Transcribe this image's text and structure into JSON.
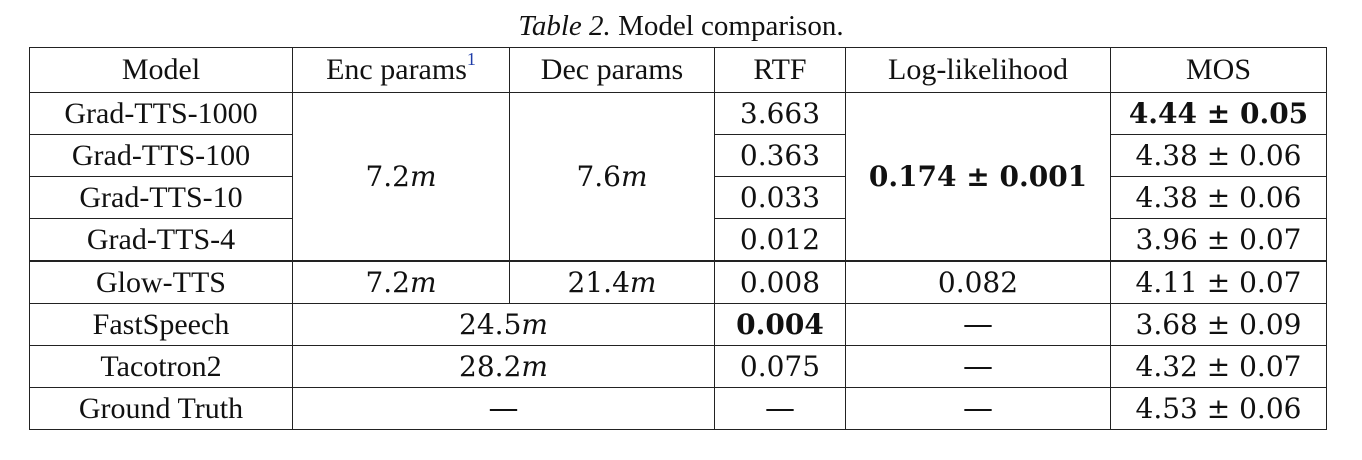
{
  "caption": {
    "label": "Table 2.",
    "text": "Model comparison."
  },
  "table": {
    "headers": {
      "model": "Model",
      "enc_params": "Enc params",
      "enc_footnote": "1",
      "dec_params": "Dec params",
      "rtf": "RTF",
      "loglik": "Log-likelihood",
      "mos": "MOS"
    },
    "rows": [
      {
        "model": "Grad-TTS-1000",
        "rtf": "3.663",
        "mos": "4.44 ± 0.05"
      },
      {
        "model": "Grad-TTS-100",
        "rtf": "0.363",
        "mos": "4.38 ± 0.06"
      },
      {
        "model": "Grad-TTS-10",
        "rtf": "0.033",
        "mos": "4.38 ± 0.06"
      },
      {
        "model": "Grad-TTS-4",
        "rtf": "0.012",
        "mos": "3.96 ± 0.07"
      },
      {
        "model": "Glow-TTS",
        "enc": "7.2",
        "dec": "21.4",
        "rtf": "0.008",
        "loglik": "0.082",
        "mos": "4.11 ± 0.07"
      },
      {
        "model": "FastSpeech",
        "params": "24.5",
        "rtf": "0.004",
        "loglik": "—",
        "mos": "3.68 ± 0.09"
      },
      {
        "model": "Tacotron2",
        "params": "28.2",
        "rtf": "0.075",
        "loglik": "—",
        "mos": "4.32 ± 0.07"
      },
      {
        "model": "Ground Truth",
        "params": "—",
        "rtf": "—",
        "loglik": "—",
        "mos": "4.53 ± 0.06"
      }
    ],
    "gradtts_group": {
      "enc": "7.2",
      "dec": "7.6",
      "loglik": "0.174 ± 0.001"
    },
    "unit": "m"
  }
}
